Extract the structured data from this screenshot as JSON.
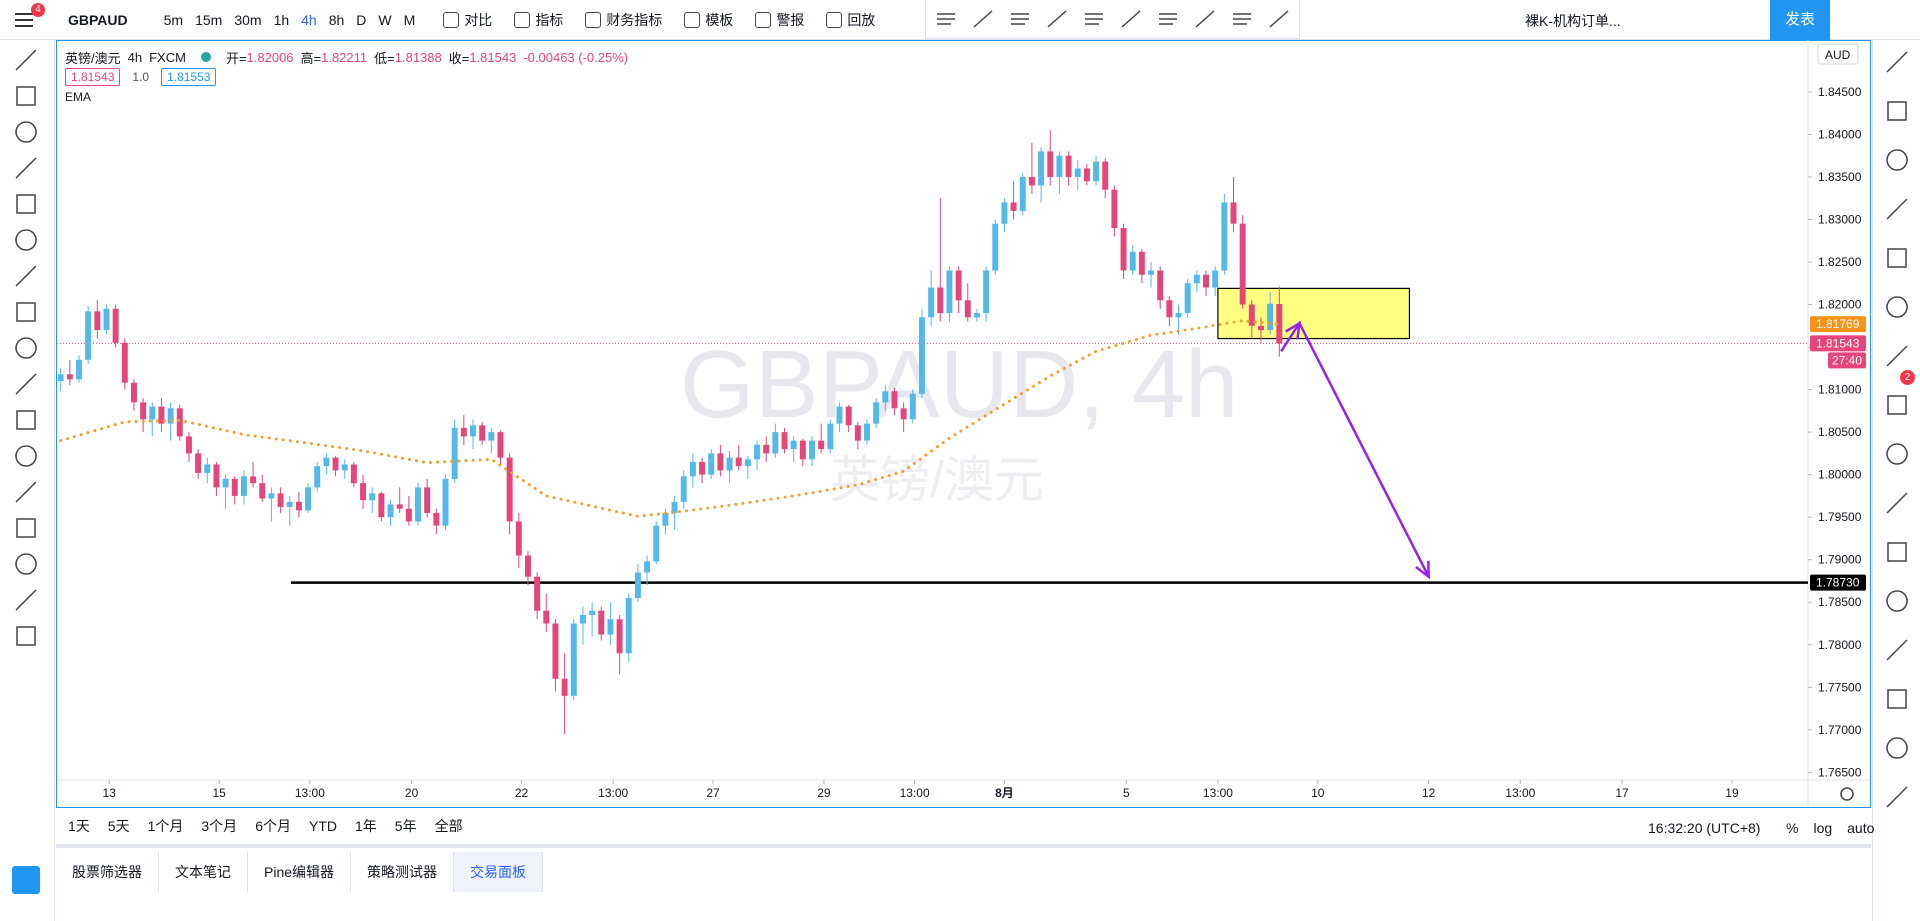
{
  "toolbar": {
    "symbol": "GBPAUD",
    "badge": "4",
    "intervals": [
      "5m",
      "15m",
      "30m",
      "1h",
      "4h",
      "8h",
      "D",
      "W",
      "M"
    ],
    "active_interval": "4h",
    "buttons": [
      "对比",
      "指标",
      "财务指标",
      "模板",
      "警报",
      "回放"
    ],
    "layout_name": "裸K-机构订单...",
    "publish": "发表"
  },
  "legend": {
    "name": "英镑/澳元",
    "interval": "4h",
    "source": "FXCM",
    "ohlc": [
      [
        "开=",
        "1.82006"
      ],
      [
        "高=",
        "1.82211"
      ],
      [
        "低=",
        "1.81388"
      ],
      [
        "收=",
        "1.81543"
      ]
    ],
    "change": "-0.00463 (-0.25%)",
    "boxes": [
      "1.81543",
      "1.0",
      "1.81553"
    ]
  },
  "watermark": {
    "symbol": "GBPAUD, 4h",
    "name": "英镑/澳元"
  },
  "chart_data": {
    "type": "candlestick",
    "currency": "AUD",
    "up_color": "#53b9ea",
    "down_color": "#e5457a",
    "grid": false,
    "ohlc": [
      [
        1.811,
        1.8125,
        1.8098,
        1.8118
      ],
      [
        1.8118,
        1.8135,
        1.8105,
        1.8112
      ],
      [
        1.8112,
        1.814,
        1.8108,
        1.8135
      ],
      [
        1.8135,
        1.8198,
        1.813,
        1.8192
      ],
      [
        1.8192,
        1.8205,
        1.816,
        1.817
      ],
      [
        1.817,
        1.82,
        1.8165,
        1.8195
      ],
      [
        1.8195,
        1.82,
        1.815,
        1.8155
      ],
      [
        1.8155,
        1.816,
        1.81,
        1.8108
      ],
      [
        1.8108,
        1.8112,
        1.8075,
        1.8085
      ],
      [
        1.8085,
        1.809,
        1.805,
        1.8065
      ],
      [
        1.8065,
        1.8085,
        1.8045,
        1.808
      ],
      [
        1.808,
        1.809,
        1.805,
        1.806
      ],
      [
        1.806,
        1.8085,
        1.804,
        1.8078
      ],
      [
        1.8078,
        1.8082,
        1.804,
        1.8045
      ],
      [
        1.8045,
        1.805,
        1.8015,
        1.8025
      ],
      [
        1.8025,
        1.803,
        1.7995,
        1.8002
      ],
      [
        1.8002,
        1.802,
        1.799,
        1.8012
      ],
      [
        1.8012,
        1.8015,
        1.7975,
        1.7985
      ],
      [
        1.7985,
        1.8,
        1.796,
        1.7995
      ],
      [
        1.7995,
        1.7998,
        1.7965,
        1.7975
      ],
      [
        1.7975,
        1.8005,
        1.7965,
        1.7998
      ],
      [
        1.7998,
        1.8015,
        1.7985,
        1.799
      ],
      [
        1.799,
        1.8,
        1.7968,
        1.7972
      ],
      [
        1.7972,
        1.7985,
        1.7945,
        1.7978
      ],
      [
        1.7978,
        1.7985,
        1.7955,
        1.7962
      ],
      [
        1.7962,
        1.7975,
        1.794,
        1.7968
      ],
      [
        1.7968,
        1.798,
        1.795,
        1.7958
      ],
      [
        1.7958,
        1.799,
        1.7955,
        1.7985
      ],
      [
        1.7985,
        1.8015,
        1.798,
        1.801
      ],
      [
        1.801,
        1.8025,
        1.8,
        1.802
      ],
      [
        1.802,
        1.8022,
        1.7998,
        1.8005
      ],
      [
        1.8005,
        1.8018,
        1.7995,
        1.8012
      ],
      [
        1.8012,
        1.8015,
        1.7985,
        1.799
      ],
      [
        1.799,
        1.8,
        1.796,
        1.797
      ],
      [
        1.797,
        1.7985,
        1.7955,
        1.7978
      ],
      [
        1.7978,
        1.798,
        1.7945,
        1.795
      ],
      [
        1.795,
        1.797,
        1.794,
        1.7965
      ],
      [
        1.7965,
        1.7985,
        1.7955,
        1.796
      ],
      [
        1.796,
        1.7975,
        1.794,
        1.7945
      ],
      [
        1.7945,
        1.799,
        1.794,
        1.7985
      ],
      [
        1.7985,
        1.7995,
        1.795,
        1.7955
      ],
      [
        1.7955,
        1.796,
        1.793,
        1.794
      ],
      [
        1.794,
        1.8,
        1.7935,
        1.7995
      ],
      [
        1.7995,
        1.8065,
        1.799,
        1.8055
      ],
      [
        1.8055,
        1.807,
        1.8035,
        1.8045
      ],
      [
        1.8045,
        1.8065,
        1.803,
        1.8058
      ],
      [
        1.8058,
        1.8062,
        1.8035,
        1.804
      ],
      [
        1.804,
        1.8055,
        1.8025,
        1.805
      ],
      [
        1.805,
        1.8052,
        1.801,
        1.802
      ],
      [
        1.802,
        1.8025,
        1.793,
        1.7945
      ],
      [
        1.7945,
        1.7955,
        1.789,
        1.7905
      ],
      [
        1.7905,
        1.791,
        1.787,
        1.788
      ],
      [
        1.788,
        1.7885,
        1.783,
        1.784
      ],
      [
        1.784,
        1.786,
        1.7815,
        1.7825
      ],
      [
        1.7825,
        1.783,
        1.7745,
        1.776
      ],
      [
        1.776,
        1.779,
        1.7695,
        1.774
      ],
      [
        1.774,
        1.783,
        1.7735,
        1.7825
      ],
      [
        1.7825,
        1.7845,
        1.78,
        1.7835
      ],
      [
        1.7835,
        1.785,
        1.781,
        1.784
      ],
      [
        1.784,
        1.7845,
        1.7805,
        1.7812
      ],
      [
        1.7812,
        1.785,
        1.78,
        1.783
      ],
      [
        1.783,
        1.7835,
        1.7765,
        1.779
      ],
      [
        1.779,
        1.786,
        1.778,
        1.7855
      ],
      [
        1.7855,
        1.7895,
        1.785,
        1.7885
      ],
      [
        1.7885,
        1.7905,
        1.787,
        1.7898
      ],
      [
        1.7898,
        1.7945,
        1.7895,
        1.794
      ],
      [
        1.794,
        1.796,
        1.793,
        1.7955
      ],
      [
        1.7955,
        1.7975,
        1.7935,
        1.7968
      ],
      [
        1.7968,
        1.8005,
        1.796,
        1.7998
      ],
      [
        1.7998,
        1.8025,
        1.7985,
        1.8015
      ],
      [
        1.8015,
        1.802,
        1.799,
        1.8
      ],
      [
        1.8,
        1.803,
        1.7995,
        1.8025
      ],
      [
        1.8025,
        1.8035,
        1.7998,
        1.8005
      ],
      [
        1.8005,
        1.8028,
        1.799,
        1.802
      ],
      [
        1.802,
        1.8035,
        1.8005,
        1.801
      ],
      [
        1.801,
        1.8022,
        1.7995,
        1.8018
      ],
      [
        1.8018,
        1.804,
        1.8005,
        1.8035
      ],
      [
        1.8035,
        1.8045,
        1.8015,
        1.8025
      ],
      [
        1.8025,
        1.806,
        1.802,
        1.805
      ],
      [
        1.805,
        1.8055,
        1.8025,
        1.803
      ],
      [
        1.803,
        1.8045,
        1.8015,
        1.804
      ],
      [
        1.804,
        1.8042,
        1.801,
        1.8018
      ],
      [
        1.8018,
        1.8045,
        1.801,
        1.804
      ],
      [
        1.804,
        1.806,
        1.8025,
        1.803
      ],
      [
        1.803,
        1.8065,
        1.8025,
        1.806
      ],
      [
        1.806,
        1.8085,
        1.805,
        1.808
      ],
      [
        1.808,
        1.8082,
        1.805,
        1.8058
      ],
      [
        1.8058,
        1.8062,
        1.803,
        1.804
      ],
      [
        1.804,
        1.8065,
        1.8035,
        1.806
      ],
      [
        1.806,
        1.809,
        1.8055,
        1.8085
      ],
      [
        1.8085,
        1.8105,
        1.8075,
        1.8098
      ],
      [
        1.8098,
        1.8102,
        1.807,
        1.8078
      ],
      [
        1.8078,
        1.8085,
        1.805,
        1.8065
      ],
      [
        1.8065,
        1.81,
        1.806,
        1.8095
      ],
      [
        1.8095,
        1.8195,
        1.809,
        1.8185
      ],
      [
        1.8185,
        1.824,
        1.8175,
        1.822
      ],
      [
        1.822,
        1.8325,
        1.818,
        1.819
      ],
      [
        1.819,
        1.8245,
        1.818,
        1.824
      ],
      [
        1.824,
        1.8245,
        1.819,
        1.8205
      ],
      [
        1.8205,
        1.8225,
        1.818,
        1.8185
      ],
      [
        1.8185,
        1.8195,
        1.818,
        1.819
      ],
      [
        1.819,
        1.8245,
        1.818,
        1.824
      ],
      [
        1.824,
        1.83,
        1.8235,
        1.8295
      ],
      [
        1.8295,
        1.8325,
        1.8285,
        1.832
      ],
      [
        1.832,
        1.8345,
        1.83,
        1.831
      ],
      [
        1.831,
        1.8355,
        1.8305,
        1.835
      ],
      [
        1.835,
        1.839,
        1.833,
        1.834
      ],
      [
        1.834,
        1.8385,
        1.832,
        1.838
      ],
      [
        1.838,
        1.8405,
        1.834,
        1.835
      ],
      [
        1.835,
        1.838,
        1.833,
        1.8375
      ],
      [
        1.8375,
        1.838,
        1.834,
        1.835
      ],
      [
        1.835,
        1.837,
        1.8335,
        1.836
      ],
      [
        1.836,
        1.8365,
        1.834,
        1.8345
      ],
      [
        1.8345,
        1.8375,
        1.834,
        1.8368
      ],
      [
        1.8368,
        1.8372,
        1.8325,
        1.8335
      ],
      [
        1.8335,
        1.834,
        1.828,
        1.829
      ],
      [
        1.829,
        1.8295,
        1.823,
        1.824
      ],
      [
        1.824,
        1.827,
        1.8235,
        1.8262
      ],
      [
        1.8262,
        1.8265,
        1.8225,
        1.8235
      ],
      [
        1.8235,
        1.825,
        1.822,
        1.824
      ],
      [
        1.824,
        1.8245,
        1.8195,
        1.8205
      ],
      [
        1.8205,
        1.821,
        1.8175,
        1.8185
      ],
      [
        1.8185,
        1.82,
        1.8165,
        1.819
      ],
      [
        1.819,
        1.823,
        1.8185,
        1.8225
      ],
      [
        1.8225,
        1.824,
        1.8215,
        1.8235
      ],
      [
        1.8235,
        1.824,
        1.821,
        1.822
      ],
      [
        1.822,
        1.8245,
        1.821,
        1.824
      ],
      [
        1.824,
        1.833,
        1.8235,
        1.832
      ],
      [
        1.832,
        1.835,
        1.8285,
        1.8295
      ],
      [
        1.8295,
        1.8305,
        1.8195,
        1.82
      ],
      [
        1.82,
        1.8205,
        1.816,
        1.8175
      ],
      [
        1.8175,
        1.8185,
        1.8155,
        1.817
      ],
      [
        1.817,
        1.8215,
        1.8165,
        1.8201
      ],
      [
        1.82006,
        1.82211,
        1.81388,
        1.81543
      ]
    ],
    "ema": {
      "name": "EMA",
      "color": "#f0a030",
      "x": [
        0,
        7,
        13,
        20,
        27,
        33,
        40,
        47,
        53,
        63,
        68,
        73,
        80,
        87,
        92,
        97,
        103,
        108,
        113,
        119,
        124,
        129,
        133
      ],
      "values": [
        1.804,
        1.8062,
        1.8064,
        1.8047,
        1.8037,
        1.8028,
        1.8014,
        1.8018,
        1.7975,
        1.7951,
        1.7957,
        1.7964,
        1.7975,
        1.7988,
        1.8004,
        1.8043,
        1.8083,
        1.8116,
        1.8145,
        1.8164,
        1.8172,
        1.8181,
        1.8177
      ]
    },
    "xlim": [
      -0.4,
      190.7
    ],
    "xticks": [
      {
        "value": 5.3,
        "label": "13"
      },
      {
        "value": 17.3,
        "label": "15"
      },
      {
        "value": 27.2,
        "label": "13:00"
      },
      {
        "value": 38.3,
        "label": "20"
      },
      {
        "value": 50.3,
        "label": "22"
      },
      {
        "value": 60.3,
        "label": "13:00"
      },
      {
        "value": 71.2,
        "label": "27"
      },
      {
        "value": 83.3,
        "label": "29"
      },
      {
        "value": 93.2,
        "label": "13:00"
      },
      {
        "value": 103,
        "label": "8月"
      },
      {
        "value": 116.3,
        "label": "5"
      },
      {
        "value": 126.3,
        "label": "13:00"
      },
      {
        "value": 137.2,
        "label": "10"
      },
      {
        "value": 149.3,
        "label": "12"
      },
      {
        "value": 159.3,
        "label": "13:00"
      },
      {
        "value": 170.4,
        "label": "17"
      },
      {
        "value": 182.4,
        "label": "19"
      }
    ],
    "ylim": [
      1.7641,
      1.8511
    ],
    "yticks": [
      {
        "value": 1.845,
        "label": "1.84500"
      },
      {
        "value": 1.84,
        "label": "1.84000"
      },
      {
        "value": 1.835,
        "label": "1.83500"
      },
      {
        "value": 1.83,
        "label": "1.83000"
      },
      {
        "value": 1.825,
        "label": "1.82500"
      },
      {
        "value": 1.82,
        "label": "1.82000"
      },
      {
        "value": 1.815,
        "label": "1.81500"
      },
      {
        "value": 1.81,
        "label": "1.81000"
      },
      {
        "value": 1.805,
        "label": "1.80500"
      },
      {
        "value": 1.8,
        "label": "1.80000"
      },
      {
        "value": 1.795,
        "label": "1.79500"
      },
      {
        "value": 1.79,
        "label": "1.79000"
      },
      {
        "value": 1.785,
        "label": "1.78500"
      },
      {
        "value": 1.78,
        "label": "1.78000"
      },
      {
        "value": 1.775,
        "label": "1.77500"
      },
      {
        "value": 1.77,
        "label": "1.77000"
      },
      {
        "value": 1.765,
        "label": "1.76500"
      }
    ],
    "horizontal_line": {
      "value": 1.7873,
      "label": "1.78730",
      "color": "#000000"
    },
    "last_price": {
      "value": 1.81543,
      "label": "1.81543",
      "countdown": "27:40",
      "color": "#e5457a"
    },
    "ema_last": {
      "value": 1.81769,
      "label": "1.81769",
      "color": "#f7931a"
    },
    "drawings": {
      "rectangle": {
        "x": [
          126.3,
          147.2
        ],
        "y": [
          1.8219,
          1.816
        ],
        "color": "#ffff80"
      },
      "arrow": {
        "x": [
          133.2,
          135.2,
          149.3
        ],
        "y": [
          1.8145,
          1.8178,
          1.788
        ],
        "color": "#9b1fe8"
      }
    }
  },
  "bottom_bar": {
    "ranges": [
      "1天",
      "5天",
      "1个月",
      "3个月",
      "6个月",
      "YTD",
      "1年",
      "5年",
      "全部"
    ],
    "clock": "16:32:20 (UTC+8)",
    "options": [
      "%",
      "log",
      "auto"
    ]
  },
  "panel_tabs": {
    "tabs": [
      "股票筛选器",
      "文本笔记",
      "Pine编辑器",
      "策略测试器",
      "交易面板"
    ],
    "active": "交易面板"
  },
  "right_badge": "2"
}
